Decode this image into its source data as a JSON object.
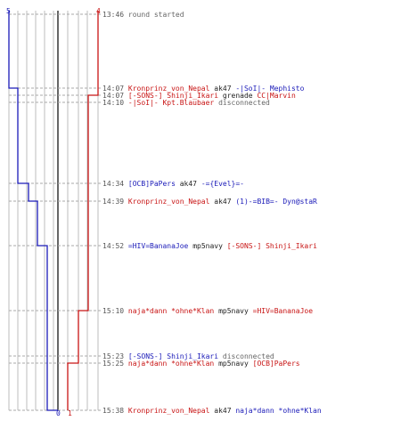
{
  "colors": {
    "team_blue": "#1a1ab8",
    "team_red": "#c81414",
    "time": "#555555",
    "grid": "#bbbbbb"
  },
  "counts": {
    "blue_start": "5",
    "red_start": "4",
    "blue_end": "0",
    "red_end": "1"
  },
  "events": [
    {
      "time": "13:46",
      "actor": "",
      "weapon": "",
      "target": "",
      "note": "round started"
    },
    {
      "time": "14:07",
      "actor": "Kronprinz_von_Nepal",
      "weapon": "ak47",
      "target": "-|SoI|- Mephisto",
      "note": ""
    },
    {
      "time": "14:07",
      "actor": "[-SONS-] Shinji_Ikari",
      "weapon": "grenade",
      "target": "CC|Marvin",
      "note": ""
    },
    {
      "time": "14:10",
      "actor": "-|SoI|- Kpt.Blaubaer",
      "weapon": "",
      "target": "",
      "note": "disconnected"
    },
    {
      "time": "14:34",
      "actor": "[OCB]PaPers",
      "weapon": "ak47",
      "target": "-={Evel}=-",
      "note": ""
    },
    {
      "time": "14:39",
      "actor": "Kronprinz_von_Nepal",
      "weapon": "ak47",
      "target": "(1)-=BIB=- Dyn@staR",
      "note": ""
    },
    {
      "time": "14:52",
      "actor": "=HIV=BananaJoe",
      "weapon": "mp5navy",
      "target": "[-SONS-] Shinji_Ikari",
      "note": ""
    },
    {
      "time": "15:10",
      "actor": "naja*dann *ohne*Klan",
      "weapon": "mp5navy",
      "target": "=HIV=BananaJoe",
      "note": ""
    },
    {
      "time": "15:23",
      "actor": "[-SONS-] Shinji_Ikari",
      "weapon": "",
      "target": "",
      "note": "disconnected"
    },
    {
      "time": "15:25",
      "actor": "naja*dann *ohne*Klan",
      "weapon": "mp5navy",
      "target": "[OCB]PaPers",
      "note": ""
    },
    {
      "time": "15:38",
      "actor": "Kronprinz_von_Nepal",
      "weapon": "ak47",
      "target": "naja*dann *ohne*Klan",
      "note": ""
    }
  ]
}
